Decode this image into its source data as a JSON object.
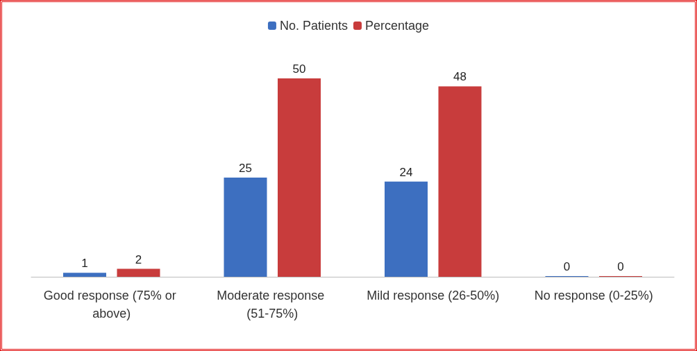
{
  "chart_data": {
    "type": "bar",
    "categories": [
      "Good response (75% or above)",
      "Moderate response (51-75%)",
      "Mild response (26-50%)",
      "No response (0-25%)"
    ],
    "series": [
      {
        "name": "No. Patients",
        "color": "#3d6fc0",
        "values": [
          1,
          25,
          24,
          0
        ]
      },
      {
        "name": "Percentage",
        "color": "#c83c3c",
        "values": [
          2,
          50,
          48,
          0
        ]
      }
    ],
    "data_labels": true,
    "legend": "top",
    "grid": false
  }
}
